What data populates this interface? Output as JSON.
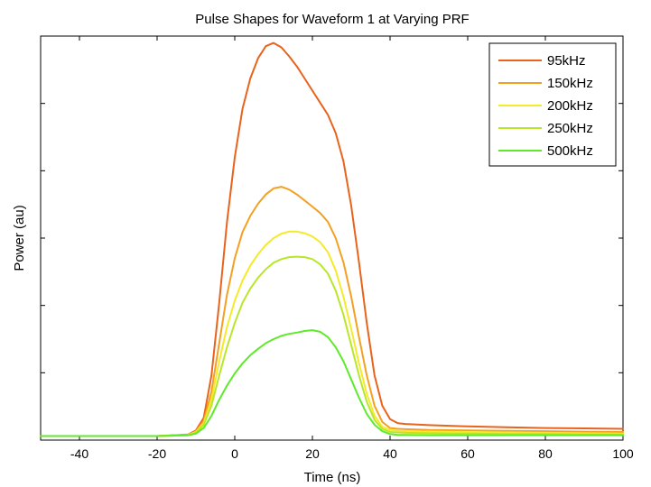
{
  "chart_data": {
    "type": "line",
    "title": "Pulse Shapes for Waveform 1 at Varying PRF",
    "xlabel": "Time (ns)",
    "ylabel": "Power (au)",
    "xlim": [
      -50,
      100
    ],
    "ylim": [
      0,
      100
    ],
    "x_ticks": [
      -40,
      -20,
      0,
      20,
      40,
      60,
      80,
      100
    ],
    "y_tick_values": [
      0,
      16.67,
      33.33,
      50,
      66.67,
      83.33
    ],
    "y_tick_labels_shown": false,
    "grid": false,
    "legend_position": "top-right",
    "x": [
      -50,
      -20,
      -12,
      -10,
      -8,
      -6,
      -4,
      -2,
      0,
      2,
      4,
      6,
      8,
      10,
      12,
      14,
      16,
      18,
      20,
      22,
      24,
      26,
      28,
      30,
      32,
      34,
      36,
      38,
      40,
      42,
      44,
      50,
      60,
      70,
      80,
      90,
      100
    ],
    "series": [
      {
        "name": "95kHz",
        "color": "#e8631c",
        "values": [
          1.0,
          1.0,
          1.4,
          2.4,
          5.5,
          16,
          34,
          54,
          70,
          82,
          89.5,
          94.5,
          97.5,
          98.3,
          97.2,
          95,
          92.5,
          89.5,
          86.5,
          83.5,
          80.5,
          76,
          69,
          58,
          44,
          29,
          16,
          8.5,
          5.2,
          4.2,
          4.0,
          3.7,
          3.4,
          3.2,
          3.0,
          2.9,
          2.8
        ]
      },
      {
        "name": "150kHz",
        "color": "#f4a023",
        "values": [
          1.0,
          1.0,
          1.3,
          2.2,
          4.7,
          12,
          24,
          36,
          45,
          51.5,
          55.5,
          58.5,
          60.8,
          62.3,
          62.7,
          62,
          60.8,
          59.3,
          57.8,
          56.2,
          54,
          50,
          44,
          35.5,
          25.5,
          16,
          8.5,
          4.5,
          3.0,
          2.8,
          2.7,
          2.5,
          2.4,
          2.3,
          2.2,
          2.1,
          2.0
        ]
      },
      {
        "name": "200kHz",
        "color": "#f5ea2a",
        "values": [
          1.0,
          1.0,
          1.3,
          2.0,
          4.2,
          10,
          19.5,
          28,
          34.5,
          39.5,
          43.2,
          46,
          48.3,
          50,
          51.1,
          51.6,
          51.6,
          51.2,
          50.4,
          49,
          46.5,
          42,
          35.5,
          27.5,
          19,
          11.5,
          6,
          3.3,
          2.5,
          2.3,
          2.2,
          2.1,
          2.0,
          1.9,
          1.8,
          1.7,
          1.6
        ]
      },
      {
        "name": "250kHz",
        "color": "#b9e62a",
        "values": [
          1.0,
          1.0,
          1.2,
          1.8,
          3.8,
          8.5,
          16,
          23,
          29,
          34,
          37.5,
          40.2,
          42.3,
          43.9,
          44.8,
          45.3,
          45.4,
          45.3,
          44.8,
          43.5,
          41.2,
          37,
          31,
          23.5,
          16,
          9.5,
          5,
          2.8,
          2.0,
          1.9,
          1.8,
          1.7,
          1.6,
          1.5,
          1.5,
          1.4,
          1.4
        ]
      },
      {
        "name": "500kHz",
        "color": "#5eea2a",
        "values": [
          1.0,
          1.0,
          1.2,
          1.6,
          3.0,
          6.0,
          10,
          13.5,
          16.5,
          19,
          21,
          22.6,
          24,
          25,
          25.8,
          26.3,
          26.6,
          27,
          27.2,
          26.8,
          25.5,
          23,
          19.5,
          15,
          10.5,
          6.5,
          3.8,
          2.2,
          1.5,
          1.3,
          1.3,
          1.2,
          1.2,
          1.2,
          1.2,
          1.2,
          1.2
        ]
      }
    ]
  }
}
